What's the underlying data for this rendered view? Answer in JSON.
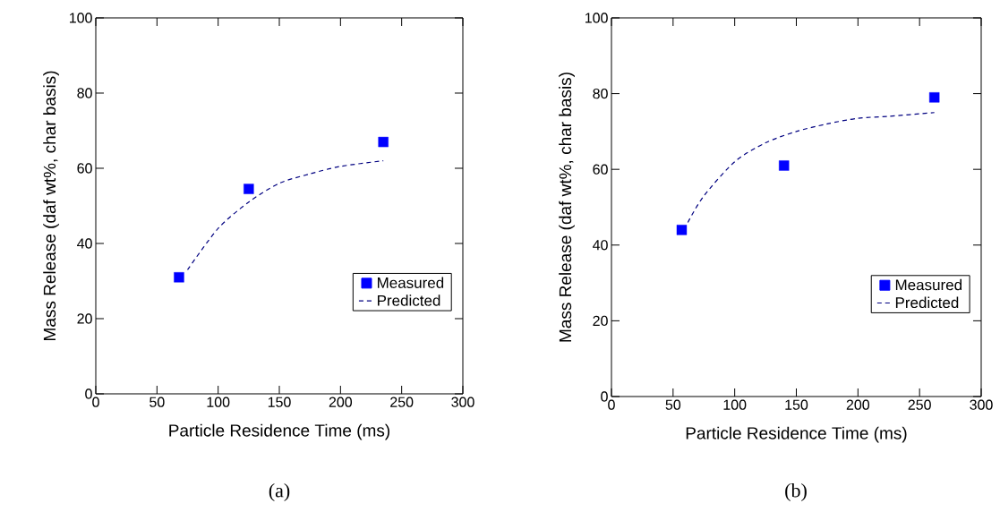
{
  "chart_data": [
    {
      "type": "scatter",
      "xlabel": "Particle Residence Time (ms)",
      "ylabel": "Mass Release (daf wt%, char basis)",
      "annotations": [
        "(a)"
      ],
      "xlim": [
        0,
        300
      ],
      "ylim": [
        0,
        100
      ],
      "xticks": [
        0,
        50,
        100,
        150,
        200,
        250,
        300
      ],
      "yticks": [
        0,
        20,
        40,
        60,
        80,
        100
      ],
      "grid": false,
      "legend": "bottom right",
      "series": [
        {
          "name": "Measured",
          "type": "scatter",
          "marker": "square",
          "color": "#0000ff",
          "x": [
            68,
            125,
            235
          ],
          "values": [
            31,
            54.5,
            67
          ]
        },
        {
          "name": "Predicted",
          "type": "line",
          "line_style": "dashed",
          "color": "#000080",
          "x": [
            75,
            100,
            125,
            150,
            175,
            200,
            235
          ],
          "values": [
            33,
            44,
            51,
            56,
            58.5,
            60.5,
            62
          ]
        }
      ]
    },
    {
      "type": "scatter",
      "xlabel": "Particle Residence Time (ms)",
      "ylabel": "Mass Release (daf wt%, char basis)",
      "annotations": [
        "(b)"
      ],
      "xlim": [
        0,
        300
      ],
      "ylim": [
        0,
        100
      ],
      "xticks": [
        0,
        50,
        100,
        150,
        200,
        250,
        300
      ],
      "yticks": [
        0,
        20,
        40,
        60,
        80,
        100
      ],
      "grid": false,
      "legend": "bottom right",
      "series": [
        {
          "name": "Measured",
          "type": "scatter",
          "marker": "square",
          "color": "#0000ff",
          "x": [
            57,
            140,
            262
          ],
          "values": [
            44,
            61,
            79
          ]
        },
        {
          "name": "Predicted",
          "type": "line",
          "line_style": "dashed",
          "color": "#000080",
          "x": [
            62,
            75,
            100,
            125,
            150,
            175,
            200,
            225,
            262
          ],
          "values": [
            46,
            53,
            62,
            67,
            70,
            72,
            73.5,
            74,
            75
          ]
        }
      ]
    }
  ]
}
